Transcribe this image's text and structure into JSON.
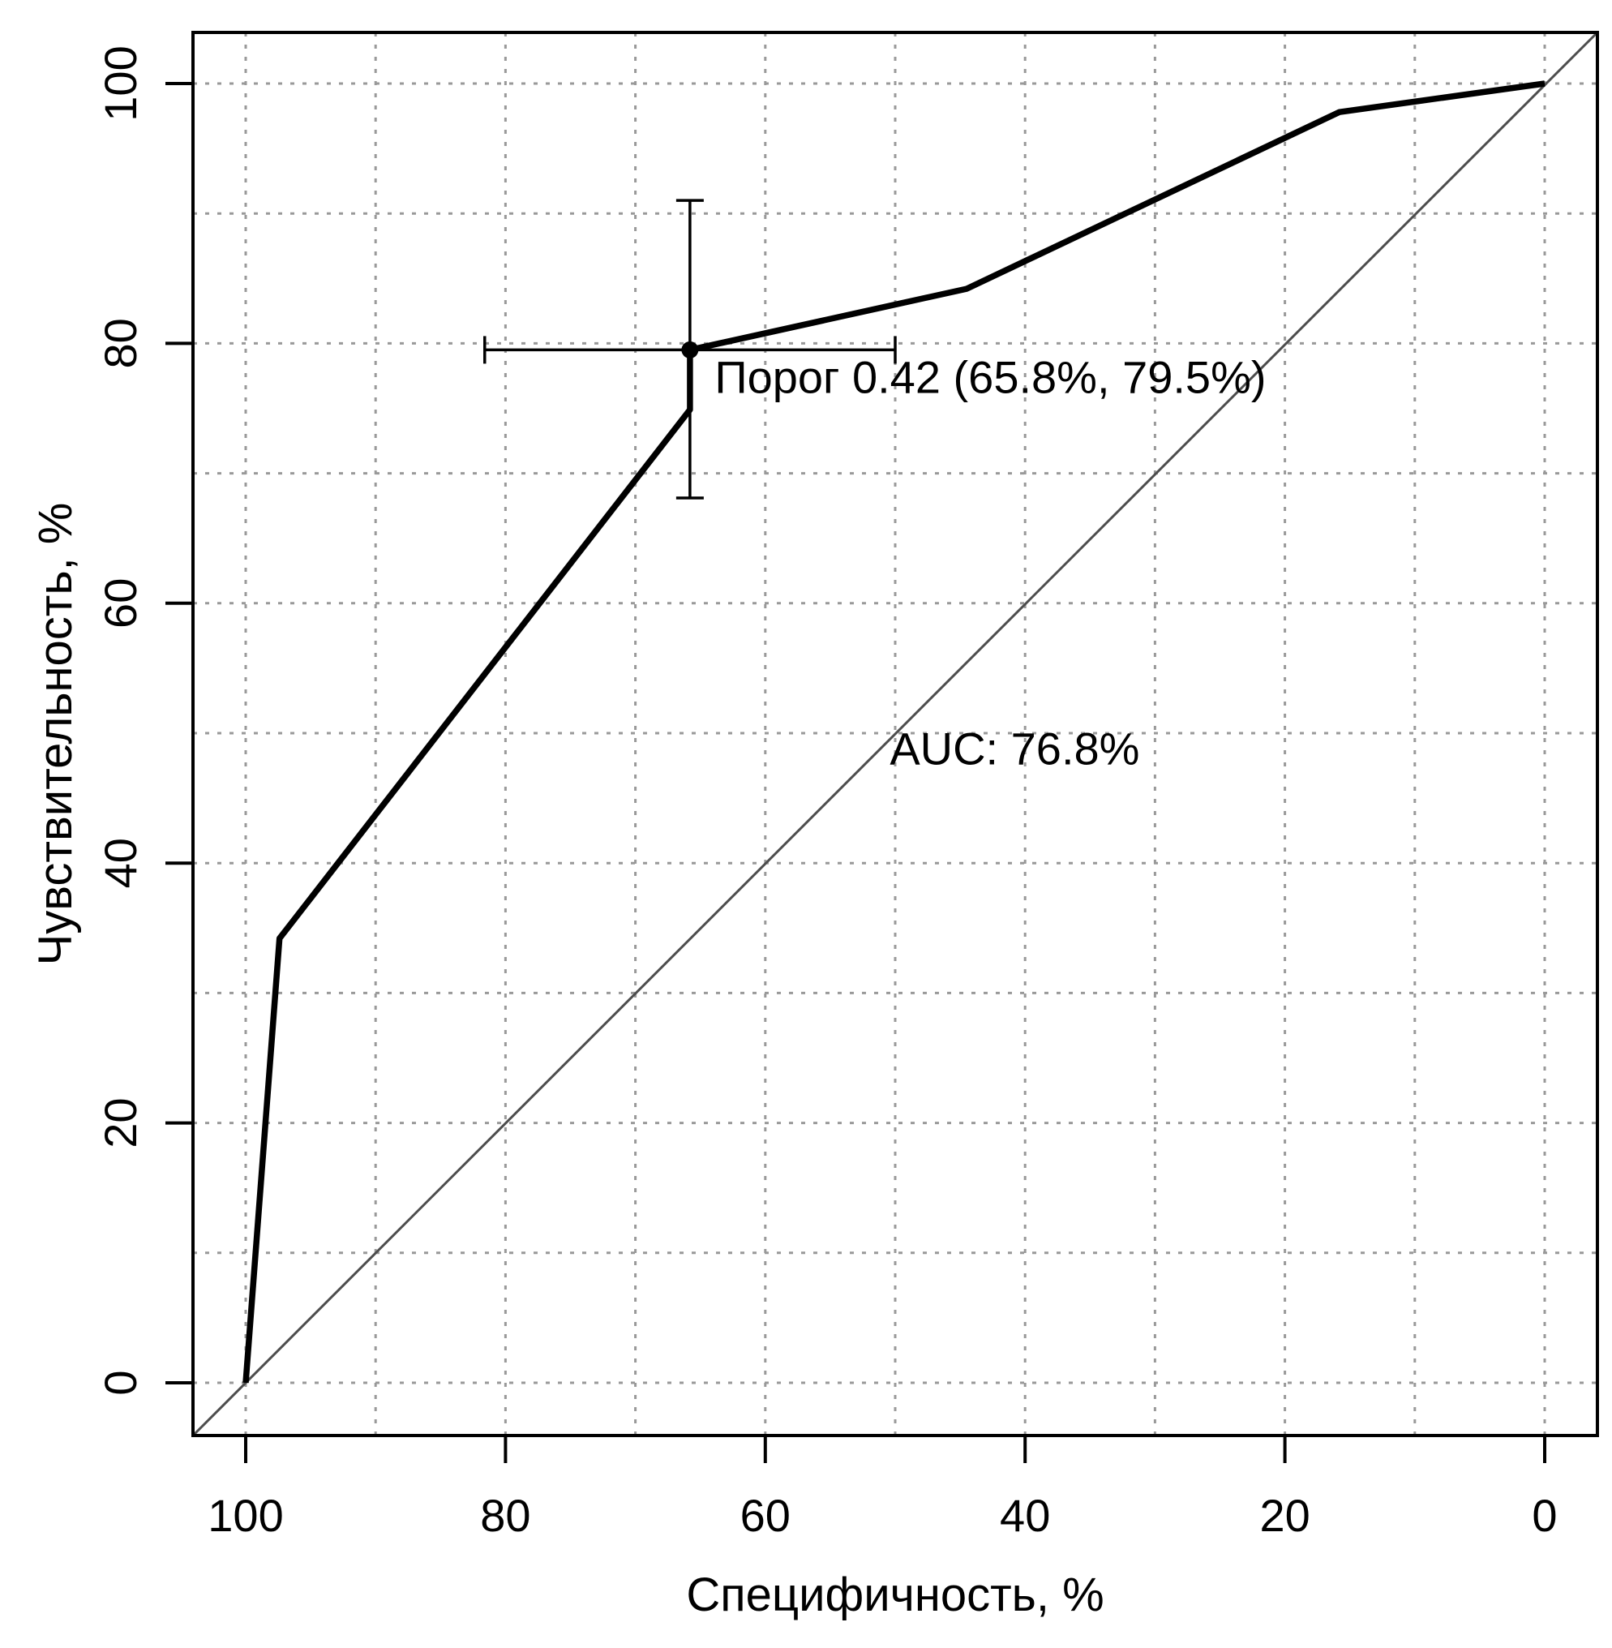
{
  "chart_data": {
    "type": "line",
    "title": "",
    "xlabel": "Специфичность, %",
    "ylabel": "Чувствительность, %",
    "x_axis": {
      "ticks": [
        100,
        80,
        60,
        40,
        20,
        0
      ],
      "tick_labels": [
        "100",
        "80",
        "60",
        "40",
        "20",
        "0"
      ],
      "range": [
        0,
        100
      ],
      "reversed": true,
      "grid_step": 10,
      "grid_style": "dotted"
    },
    "y_axis": {
      "ticks": [
        0,
        20,
        40,
        60,
        80,
        100
      ],
      "tick_labels": [
        "0",
        "20",
        "40",
        "60",
        "80",
        "100"
      ],
      "range": [
        0,
        100
      ],
      "grid_step": 10,
      "grid_style": "dotted"
    },
    "roc_curve": {
      "name": "ROC curve",
      "points_spec_sens": [
        [
          100,
          0
        ],
        [
          97.4,
          34.2
        ],
        [
          65.8,
          74.9
        ],
        [
          65.8,
          79.5
        ],
        [
          44.5,
          84.2
        ],
        [
          15.8,
          97.8
        ],
        [
          0,
          100
        ]
      ]
    },
    "diagonal_reference": {
      "from_spec_sens": [
        100,
        0
      ],
      "to_spec_sens": [
        0,
        100
      ]
    },
    "best_threshold": {
      "threshold": "0.42",
      "specificity": 65.8,
      "sensitivity": 79.5,
      "label": "Порог 0.42 (65.8%, 79.5%)",
      "ci_specificity": [
        50.0,
        81.6
      ],
      "ci_sensitivity": [
        68.1,
        91.0
      ],
      "label_anchor": {
        "spec": 63.9,
        "sens": 76.2
      }
    },
    "auc": {
      "text": "AUC: 76.8%",
      "value_pct": 76.8,
      "anchor": {
        "spec": 40.8,
        "sens": 47.6
      }
    }
  },
  "colors": {
    "curve": "#000000",
    "diagonal": "#4d4d4d",
    "grid": "#999999",
    "axis": "#000000",
    "text": "#000000",
    "background": "#ffffff"
  }
}
